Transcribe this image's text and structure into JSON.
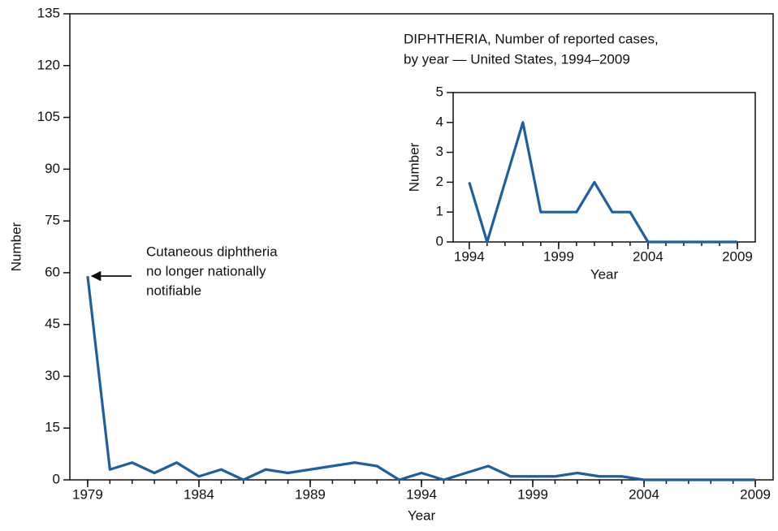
{
  "chart_data": [
    {
      "type": "line",
      "x": [
        1979,
        1980,
        1981,
        1982,
        1983,
        1984,
        1985,
        1986,
        1987,
        1988,
        1989,
        1990,
        1991,
        1992,
        1993,
        1994,
        1995,
        1996,
        1997,
        1998,
        1999,
        2000,
        2001,
        2002,
        2003,
        2004,
        2005,
        2006,
        2007,
        2008,
        2009
      ],
      "series": [
        {
          "name": "Number",
          "color": "#1f5fa0",
          "values": [
            59,
            3,
            5,
            2,
            5,
            1,
            3,
            0,
            3,
            2,
            3,
            4,
            5,
            4,
            0,
            2,
            0,
            2,
            4,
            1,
            1,
            1,
            2,
            1,
            1,
            0,
            0,
            0,
            0,
            0,
            0
          ]
        }
      ],
      "xlim": [
        1978.2,
        2009.8
      ],
      "xticks": [
        1979,
        1984,
        1989,
        1994,
        1999,
        2004,
        2009
      ],
      "ylim": [
        0,
        135
      ],
      "yticks": [
        0,
        15,
        30,
        45,
        60,
        75,
        90,
        105,
        120,
        135
      ],
      "x_label": "Year",
      "y_label": "Number",
      "annotation": [
        "Cutaneous diphtheria",
        "no longer nationally",
        "notifiable"
      ]
    },
    {
      "type": "line",
      "title": [
        "DIPHTHERIA, Number of reported cases,",
        "by year — United States, 1994–2009"
      ],
      "x": [
        1994,
        1995,
        1996,
        1997,
        1998,
        1999,
        2000,
        2001,
        2002,
        2003,
        2004,
        2005,
        2006,
        2007,
        2008,
        2009
      ],
      "series": [
        {
          "name": "Number",
          "color": "#1f5fa0",
          "values": [
            2,
            0,
            2,
            4,
            1,
            1,
            1,
            2,
            1,
            1,
            0,
            0,
            0,
            0,
            0,
            0
          ]
        }
      ],
      "xlim": [
        1993.1,
        2010
      ],
      "xticks": [
        1994,
        1999,
        2004,
        2009
      ],
      "ylim": [
        0,
        5
      ],
      "yticks": [
        0,
        1,
        2,
        3,
        4,
        5
      ],
      "x_label": "Year",
      "y_label": "Number"
    }
  ]
}
